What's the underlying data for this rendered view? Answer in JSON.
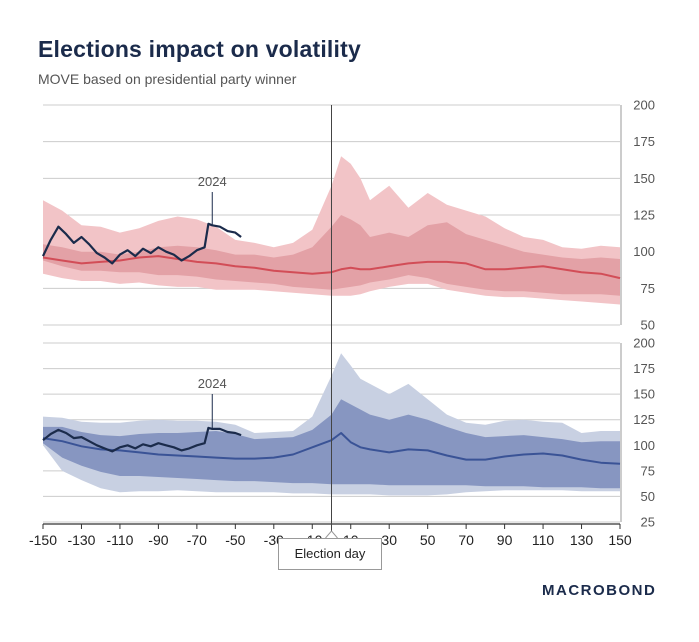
{
  "title": "Elections impact on volatility",
  "subtitle": "MOVE based on presidential party winner",
  "event_label": "Election day",
  "logo": "MACROBOND",
  "colors": {
    "title": "#1b2b4b",
    "red_outer": "#f2c4c7",
    "red_mid": "#e3a1a6",
    "red_inner": "#d98189",
    "red_line": "#d24d57",
    "blue_outer": "#c8d0e2",
    "blue_mid": "#8796c1",
    "blue_line": "#3a5396",
    "line_2024": "#1b2b4b",
    "grid": "#cccccc",
    "axis": "#333333"
  },
  "chart_data": [
    {
      "type": "area",
      "x": [
        -150,
        -140,
        -130,
        -120,
        -110,
        -100,
        -90,
        -80,
        -70,
        -60,
        -50,
        -40,
        -30,
        -20,
        -10,
        0,
        5,
        10,
        15,
        20,
        30,
        40,
        50,
        60,
        70,
        80,
        90,
        100,
        110,
        120,
        130,
        140,
        150
      ],
      "ylim": [
        50,
        200
      ],
      "yticks": [
        50,
        75,
        100,
        125,
        150,
        175,
        200
      ],
      "xlim": [
        -150,
        150
      ],
      "grid": true,
      "series": [
        {
          "role": "outer",
          "upper": [
            135,
            128,
            118,
            117,
            113,
            116,
            121,
            124,
            122,
            117,
            108,
            106,
            103,
            106,
            115,
            145,
            165,
            160,
            150,
            135,
            145,
            130,
            140,
            132,
            128,
            124,
            116,
            110,
            108,
            103,
            102,
            104,
            103
          ],
          "lower": [
            85,
            82,
            80,
            80,
            78,
            79,
            77,
            76,
            76,
            74,
            74,
            74,
            73,
            72,
            71,
            70,
            70,
            70,
            71,
            73,
            76,
            78,
            78,
            74,
            72,
            70,
            69,
            69,
            68,
            67,
            66,
            65,
            64
          ]
        },
        {
          "role": "mid",
          "upper": [
            105,
            103,
            100,
            100,
            98,
            100,
            103,
            104,
            103,
            101,
            98,
            98,
            96,
            98,
            103,
            117,
            125,
            122,
            118,
            110,
            113,
            110,
            118,
            120,
            112,
            108,
            104,
            100,
            98,
            96,
            95,
            96,
            95
          ],
          "lower": [
            94,
            90,
            87,
            87,
            86,
            86,
            84,
            84,
            83,
            81,
            80,
            79,
            78,
            76,
            75,
            74,
            75,
            76,
            77,
            79,
            81,
            84,
            82,
            78,
            76,
            74,
            73,
            73,
            72,
            71,
            71,
            71,
            70
          ]
        },
        {
          "role": "median",
          "values": [
            96,
            94,
            92,
            93,
            94,
            96,
            97,
            95,
            93,
            92,
            90,
            89,
            87,
            86,
            85,
            86,
            88,
            89,
            88,
            88,
            90,
            92,
            93,
            93,
            92,
            88,
            88,
            89,
            90,
            88,
            86,
            85,
            82
          ]
        },
        {
          "name": "2024",
          "role": "current",
          "x": [
            -150,
            -146,
            -142,
            -138,
            -134,
            -130,
            -126,
            -122,
            -118,
            -114,
            -110,
            -106,
            -102,
            -98,
            -94,
            -90,
            -86,
            -82,
            -78,
            -74,
            -70,
            -66,
            -64,
            -62,
            -58,
            -54,
            -50,
            -47
          ],
          "values": [
            97,
            108,
            117,
            112,
            106,
            110,
            105,
            99,
            96,
            92,
            98,
            101,
            97,
            102,
            99,
            103,
            100,
            98,
            94,
            97,
            101,
            103,
            119,
            118,
            117,
            114,
            113,
            110
          ]
        }
      ]
    },
    {
      "type": "area",
      "x": [
        -150,
        -140,
        -130,
        -120,
        -110,
        -100,
        -90,
        -80,
        -70,
        -60,
        -50,
        -40,
        -30,
        -20,
        -10,
        0,
        5,
        10,
        15,
        20,
        30,
        40,
        50,
        60,
        70,
        80,
        90,
        100,
        110,
        120,
        130,
        140,
        150
      ],
      "ylim": [
        25,
        200
      ],
      "yticks": [
        25,
        50,
        75,
        100,
        125,
        150,
        175,
        200
      ],
      "xlim": [
        -150,
        150
      ],
      "xticks": [
        -150,
        -130,
        -110,
        -90,
        -70,
        -50,
        -30,
        -10,
        10,
        30,
        50,
        70,
        90,
        110,
        130,
        150
      ],
      "grid": true,
      "series": [
        {
          "role": "outer",
          "upper": [
            128,
            127,
            123,
            122,
            122,
            124,
            125,
            124,
            124,
            123,
            120,
            112,
            113,
            114,
            128,
            168,
            190,
            178,
            165,
            160,
            150,
            160,
            145,
            130,
            122,
            120,
            124,
            125,
            123,
            122,
            112,
            114,
            114
          ],
          "lower": [
            100,
            75,
            66,
            58,
            54,
            55,
            55,
            56,
            55,
            54,
            54,
            54,
            54,
            53,
            53,
            52,
            52,
            52,
            52,
            52,
            51,
            51,
            51,
            52,
            54,
            55,
            56,
            56,
            56,
            56,
            55,
            55,
            55
          ]
        },
        {
          "role": "mid",
          "upper": [
            118,
            118,
            113,
            110,
            109,
            111,
            112,
            112,
            113,
            114,
            111,
            106,
            107,
            108,
            115,
            130,
            145,
            140,
            135,
            130,
            125,
            130,
            125,
            118,
            112,
            108,
            109,
            110,
            108,
            106,
            103,
            104,
            104
          ],
          "lower": [
            102,
            88,
            80,
            74,
            70,
            70,
            69,
            68,
            67,
            66,
            65,
            65,
            64,
            63,
            63,
            62,
            62,
            62,
            62,
            62,
            61,
            61,
            61,
            61,
            61,
            60,
            60,
            60,
            59,
            59,
            59,
            58,
            58
          ]
        },
        {
          "role": "median",
          "values": [
            107,
            104,
            99,
            96,
            95,
            93,
            91,
            90,
            89,
            88,
            87,
            87,
            88,
            91,
            98,
            105,
            112,
            103,
            98,
            96,
            93,
            96,
            95,
            90,
            86,
            86,
            89,
            91,
            92,
            90,
            86,
            83,
            82
          ]
        },
        {
          "name": "2024",
          "role": "current",
          "x": [
            -150,
            -146,
            -142,
            -138,
            -134,
            -130,
            -126,
            -122,
            -118,
            -114,
            -110,
            -106,
            -102,
            -98,
            -94,
            -90,
            -86,
            -82,
            -78,
            -74,
            -70,
            -66,
            -64,
            -62,
            -58,
            -54,
            -50,
            -47
          ],
          "values": [
            105,
            111,
            115,
            112,
            107,
            108,
            104,
            100,
            97,
            94,
            98,
            100,
            97,
            101,
            99,
            102,
            100,
            98,
            95,
            97,
            100,
            102,
            117,
            116,
            116,
            113,
            112,
            110
          ]
        }
      ]
    }
  ]
}
